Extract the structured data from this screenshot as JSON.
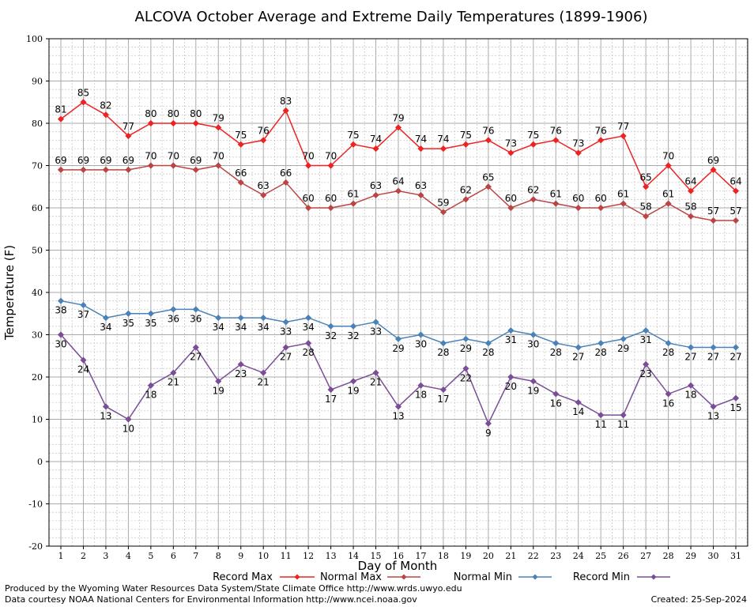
{
  "chart_data": {
    "type": "line",
    "title": "ALCOVA October Average and Extreme Daily Temperatures (1899-1906)",
    "xlabel": "Day of Month",
    "ylabel": "Temperature (F)",
    "ylim": [
      -20,
      100
    ],
    "yticks": [
      -20,
      -10,
      0,
      10,
      20,
      30,
      40,
      50,
      60,
      70,
      80,
      90,
      100
    ],
    "grid": true,
    "legend_position": "bottom",
    "x": [
      1,
      2,
      3,
      4,
      5,
      6,
      7,
      8,
      9,
      10,
      11,
      12,
      13,
      14,
      15,
      16,
      17,
      18,
      19,
      20,
      21,
      22,
      23,
      24,
      25,
      26,
      27,
      28,
      29,
      30,
      31
    ],
    "series": [
      {
        "name": "Record Max",
        "color": "#ee2222",
        "values": [
          81,
          85,
          82,
          77,
          80,
          80,
          80,
          79,
          75,
          76,
          83,
          70,
          70,
          75,
          74,
          79,
          74,
          74,
          75,
          76,
          73,
          75,
          76,
          73,
          76,
          77,
          65,
          70,
          64,
          69,
          64
        ]
      },
      {
        "name": "Normal Max",
        "color": "#bb4444",
        "values": [
          69,
          69,
          69,
          69,
          70,
          70,
          69,
          70,
          66,
          63,
          66,
          60,
          60,
          61,
          63,
          64,
          63,
          59,
          62,
          65,
          60,
          62,
          61,
          60,
          60,
          61,
          58,
          61,
          58,
          57,
          57
        ]
      },
      {
        "name": "Normal Min",
        "color": "#4a82b8",
        "values": [
          38,
          37,
          34,
          35,
          35,
          36,
          36,
          34,
          34,
          34,
          33,
          34,
          32,
          32,
          33,
          29,
          30,
          28,
          29,
          28,
          31,
          30,
          28,
          27,
          28,
          29,
          31,
          28,
          27,
          27,
          27
        ]
      },
      {
        "name": "Record Min",
        "color": "#7a4e96",
        "values": [
          30,
          24,
          13,
          10,
          18,
          21,
          27,
          19,
          23,
          21,
          27,
          28,
          17,
          19,
          21,
          13,
          18,
          17,
          22,
          9,
          20,
          19,
          16,
          14,
          11,
          11,
          23,
          16,
          18,
          13,
          15
        ]
      }
    ]
  },
  "footer": {
    "produced_by": "Produced by the Wyoming Water Resources Data System/State Climate Office http://www.wrds.uwyo.edu",
    "courtesy": "Data courtesy NOAA National Centers for Environmental Information http://www.ncei.noaa.gov",
    "created": "Created:  25-Sep-2024"
  }
}
